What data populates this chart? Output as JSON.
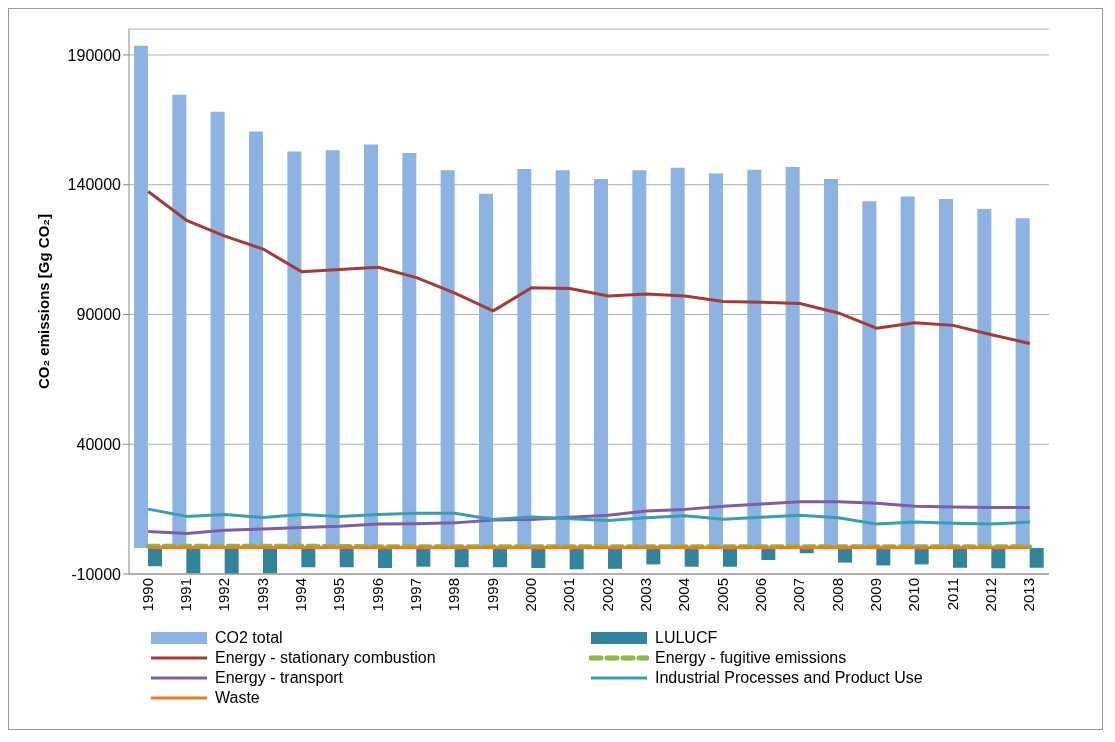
{
  "chart_data": {
    "type": "bar",
    "ylabel": "CO₂ emissions [Gg CO₂]",
    "categories": [
      "1990",
      "1991",
      "1992",
      "1993",
      "1994",
      "1995",
      "1996",
      "1997",
      "1998",
      "1999",
      "2000",
      "2001",
      "2002",
      "2003",
      "2004",
      "2005",
      "2006",
      "2007",
      "2008",
      "2009",
      "2010",
      "2011",
      "2012",
      "2013"
    ],
    "series": [
      {
        "name": "CO2 total",
        "color": "#8db3e2",
        "values": [
          193500,
          174700,
          168100,
          160500,
          152800,
          153300,
          155500,
          152200,
          145600,
          136500,
          146100,
          145600,
          142200,
          145600,
          146500,
          144300,
          145800,
          146800,
          142200,
          133600,
          135500,
          134500,
          130600,
          127100
        ]
      },
      {
        "name": "LULUCF",
        "color": "#31849b",
        "values": [
          -7000,
          -9700,
          -9900,
          -9700,
          -7400,
          -7400,
          -7700,
          -7200,
          -7400,
          -7400,
          -7700,
          -8200,
          -8000,
          -6300,
          -7200,
          -7200,
          -4600,
          -2000,
          -5600,
          -6700,
          -6300,
          -7600,
          -7800,
          -7600
        ]
      },
      {
        "name": "Energy - stationary combustion",
        "type": "line",
        "color": "#a33b36",
        "values": [
          137400,
          126300,
          120200,
          115200,
          106500,
          107300,
          108200,
          104200,
          98200,
          91400,
          100300,
          100000,
          97100,
          97900,
          97100,
          95000,
          94700,
          94200,
          90600,
          84700,
          86800,
          85800,
          82200,
          78800
        ]
      },
      {
        "name": "Energy - fugitive emissions",
        "type": "line",
        "line_style": "dashed",
        "color": "#8cb83f",
        "values": [
          700,
          700,
          700,
          700,
          700,
          600,
          500,
          500,
          500,
          500,
          500,
          500,
          500,
          500,
          500,
          500,
          500,
          500,
          500,
          500,
          500,
          500,
          500,
          500
        ]
      },
      {
        "name": "Energy - transport",
        "type": "line",
        "color": "#7b5ea7",
        "values": [
          6400,
          5600,
          6900,
          7300,
          7900,
          8400,
          9300,
          9400,
          9700,
          10800,
          11000,
          11900,
          12600,
          14300,
          14900,
          16100,
          17000,
          17800,
          17800,
          17300,
          16100,
          15800,
          15600,
          15600
        ]
      },
      {
        "name": "Industrial Processes and Product Use",
        "type": "line",
        "color": "#3b9db5",
        "values": [
          15000,
          12200,
          12900,
          11800,
          12900,
          12200,
          12900,
          13400,
          13400,
          11000,
          12000,
          11300,
          10600,
          11700,
          12400,
          11100,
          11900,
          12600,
          11700,
          9300,
          10000,
          9600,
          9300,
          10000
        ]
      },
      {
        "name": "Waste",
        "type": "line",
        "color": "#f07a1e",
        "values": [
          200,
          200,
          200,
          200,
          200,
          200,
          200,
          200,
          200,
          200,
          200,
          200,
          200,
          200,
          200,
          200,
          200,
          200,
          200,
          200,
          200,
          200,
          200,
          200
        ]
      }
    ],
    "ylim": [
      -10000,
      200000
    ],
    "yticks": [
      -10000,
      40000,
      90000,
      140000,
      190000
    ],
    "grid": "y",
    "legend": "bottom",
    "marker": "none",
    "line_style": "solid"
  }
}
